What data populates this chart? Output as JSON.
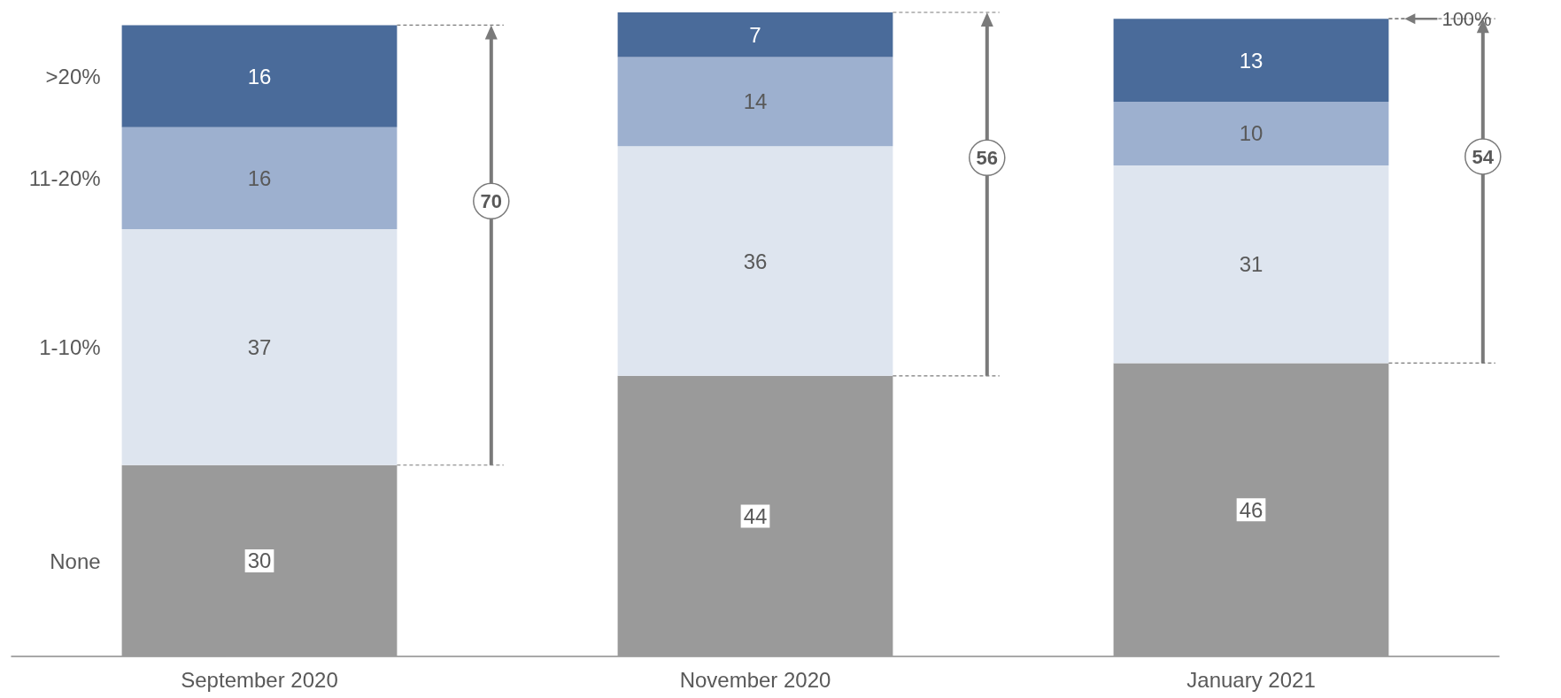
{
  "chart_data": {
    "type": "bar",
    "stacked": true,
    "categories": [
      "September 2020",
      "November 2020",
      "January 2021"
    ],
    "series": [
      {
        "name": "None",
        "color": "#9a9a9a",
        "values": [
          30,
          44,
          46
        ]
      },
      {
        "name": "1-10%",
        "color": "#dee5ef",
        "values": [
          37,
          36,
          31
        ]
      },
      {
        "name": "11-20%",
        "color": "#9db0cf",
        "values": [
          16,
          14,
          10
        ]
      },
      {
        "name": ">20%",
        "color": "#4a6b9a",
        "values": [
          16,
          7,
          13
        ]
      }
    ],
    "ylim": [
      0,
      101
    ],
    "tick_labels": "x",
    "data_labels": true,
    "legend": false,
    "annotations": [
      "70",
      "56",
      "54",
      "100%"
    ]
  }
}
